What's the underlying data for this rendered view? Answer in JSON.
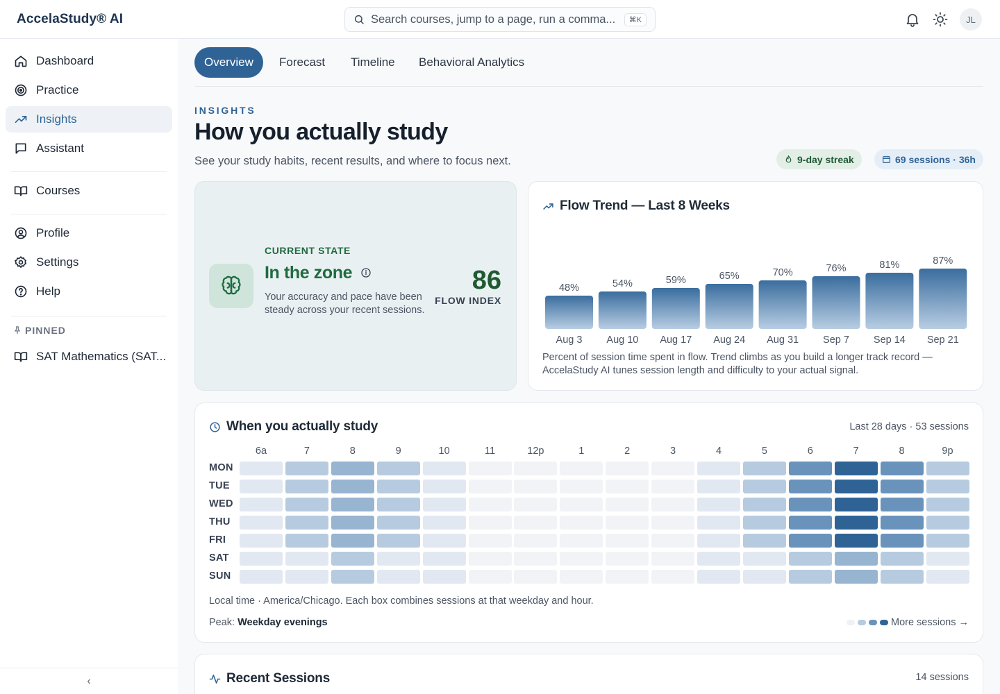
{
  "app": {
    "brand": "AccelaStudy® AI",
    "avatar_initials": "JL"
  },
  "search": {
    "placeholder": "Search courses, jump to a page, run a comma...",
    "shortcut": "⌘K"
  },
  "sidebar": {
    "items": [
      {
        "label": "Dashboard",
        "icon": "home-icon"
      },
      {
        "label": "Practice",
        "icon": "target-icon"
      },
      {
        "label": "Insights",
        "icon": "trend-icon",
        "active": true
      },
      {
        "label": "Assistant",
        "icon": "chat-icon"
      },
      {
        "label": "Courses",
        "icon": "book-icon"
      },
      {
        "label": "Profile",
        "icon": "user-circle-icon"
      },
      {
        "label": "Settings",
        "icon": "gear-icon"
      },
      {
        "label": "Help",
        "icon": "help-icon"
      }
    ],
    "pinned_label": "PINNED",
    "pinned_items": [
      {
        "label": "SAT Mathematics (SAT...",
        "icon": "book-icon"
      }
    ],
    "collapse_glyph": "‹"
  },
  "tabs": [
    {
      "label": "Overview",
      "active": true
    },
    {
      "label": "Forecast"
    },
    {
      "label": "Timeline"
    },
    {
      "label": "Behavioral Analytics"
    }
  ],
  "page": {
    "eyebrow": "INSIGHTS",
    "title": "How you actually study",
    "subtitle": "See your study habits, recent results, and where to focus next.",
    "streak_pill": "9-day streak",
    "sessions_pill": "69 sessions · 36h"
  },
  "state_card": {
    "label": "CURRENT STATE",
    "title": "In the zone",
    "description": "Your accuracy and pace have been steady across your recent sessions.",
    "flow_value": "86",
    "flow_label": "FLOW INDEX"
  },
  "trend_card": {
    "title": "Flow Trend — Last 8 Weeks",
    "note": "Percent of session time spent in flow. Trend climbs as you build a longer track record — AccelaStudy AI tunes session length and difficulty to your actual signal."
  },
  "chart_data": {
    "type": "bar",
    "categories": [
      "Aug 3",
      "Aug 10",
      "Aug 17",
      "Aug 24",
      "Aug 31",
      "Sep 7",
      "Sep 14",
      "Sep 21"
    ],
    "values": [
      48,
      54,
      59,
      65,
      70,
      76,
      81,
      87
    ],
    "value_labels": [
      "48%",
      "54%",
      "59%",
      "65%",
      "70%",
      "76%",
      "81%",
      "87%"
    ],
    "unit": "%",
    "grid": false
  },
  "heatmap": {
    "title": "When you actually study",
    "meta": "Last 28 days · 53 sessions",
    "hours": [
      "6a",
      "7",
      "8",
      "9",
      "10",
      "11",
      "12p",
      "1",
      "2",
      "3",
      "4",
      "5",
      "6",
      "7",
      "8",
      "9p"
    ],
    "days": [
      "MON",
      "TUE",
      "WED",
      "THU",
      "FRI",
      "SAT",
      "SUN"
    ],
    "levels": [
      [
        1,
        3,
        4,
        3,
        1,
        0,
        0,
        0,
        0,
        0,
        1,
        3,
        5,
        6,
        5,
        3
      ],
      [
        1,
        3,
        4,
        3,
        1,
        0,
        0,
        0,
        0,
        0,
        1,
        3,
        5,
        6,
        5,
        3
      ],
      [
        1,
        3,
        4,
        3,
        1,
        0,
        0,
        0,
        0,
        0,
        1,
        3,
        5,
        6,
        5,
        3
      ],
      [
        1,
        3,
        4,
        3,
        1,
        0,
        0,
        0,
        0,
        0,
        1,
        3,
        5,
        6,
        5,
        3
      ],
      [
        1,
        3,
        4,
        3,
        1,
        0,
        0,
        0,
        0,
        0,
        1,
        3,
        5,
        6,
        5,
        3
      ],
      [
        1,
        1,
        3,
        1,
        1,
        0,
        0,
        0,
        0,
        0,
        1,
        1,
        3,
        4,
        3,
        1
      ],
      [
        1,
        1,
        3,
        1,
        1,
        0,
        0,
        0,
        0,
        0,
        1,
        1,
        3,
        4,
        3,
        1
      ]
    ],
    "palette": [
      "#f1f3f6",
      "#e1e8f1",
      "#d3dfeb",
      "#b6cbdf",
      "#97b4d1",
      "#6a93bc",
      "#2f6396"
    ],
    "footnote": "Local time · America/Chicago. Each box combines sessions at that weekday and hour.",
    "peak_prefix": "Peak:",
    "peak_value": "Weekday evenings",
    "legend_label": "More sessions →",
    "legend_swatches": [
      "#eef2f6",
      "#b6cbdf",
      "#6a93bc",
      "#2f6396"
    ]
  },
  "recent": {
    "title": "Recent Sessions",
    "meta": "14 sessions"
  }
}
